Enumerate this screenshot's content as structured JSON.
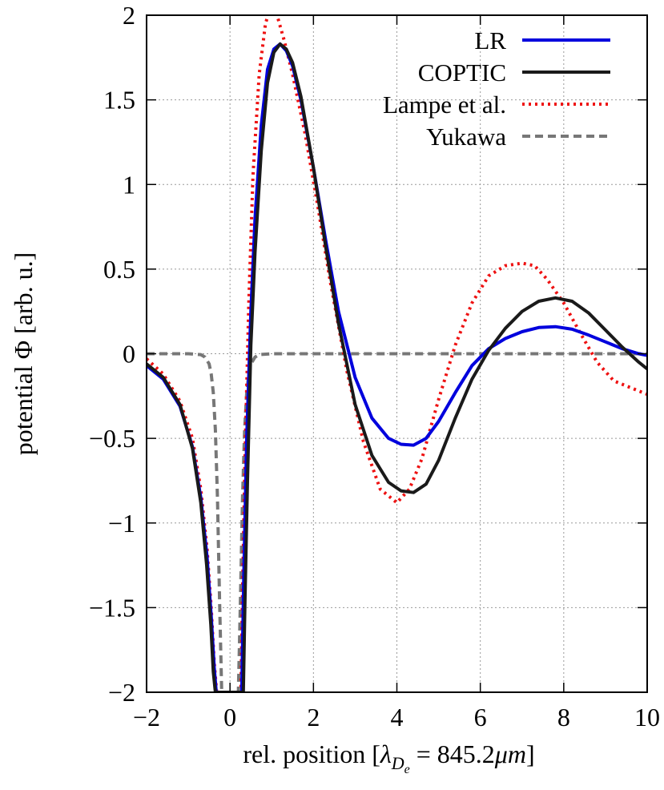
{
  "chart_data": {
    "type": "line",
    "title": "",
    "xlabel": "rel. position [λ_De = 845.2μm]",
    "xlabel_parts": {
      "prefix": "rel. position [",
      "lambda": "λ",
      "sub": "D",
      "subsub": "e",
      "eq": " = 845.2",
      "mu": "μ",
      "m": "m",
      "suffix": "]"
    },
    "ylabel": "potential Φ [arb. u.]",
    "xlim": [
      -2,
      10
    ],
    "ylim": [
      -2,
      2
    ],
    "xticks": [
      -2,
      0,
      2,
      4,
      6,
      8,
      10
    ],
    "yticks": [
      -2,
      -1.5,
      -1,
      -0.5,
      0,
      0.5,
      1,
      1.5,
      2
    ],
    "xtick_labels": [
      "−2",
      "0",
      "2",
      "4",
      "6",
      "8",
      "10"
    ],
    "ytick_labels": [
      "−2",
      "−1.5",
      "−1",
      "−0.5",
      "0",
      "0.5",
      "1",
      "1.5",
      "2"
    ],
    "grid": true,
    "legend_position": "top-right",
    "series": [
      {
        "name": "LR",
        "color": "#0000dd",
        "dash": "solid",
        "x": [
          -2.0,
          -1.6,
          -1.2,
          -0.9,
          -0.7,
          -0.55,
          -0.45,
          -0.38,
          -0.33,
          0.28,
          0.33,
          0.4,
          0.5,
          0.6,
          0.75,
          0.9,
          1.05,
          1.2,
          1.35,
          1.5,
          1.7,
          2.0,
          2.3,
          2.6,
          3.0,
          3.4,
          3.8,
          4.1,
          4.4,
          4.7,
          5.0,
          5.4,
          5.8,
          6.2,
          6.6,
          7.0,
          7.4,
          7.8,
          8.2,
          8.6,
          9.0,
          9.4,
          9.8,
          10.0
        ],
        "y": [
          -0.07,
          -0.15,
          -0.31,
          -0.55,
          -0.85,
          -1.2,
          -1.55,
          -1.85,
          -2.0,
          -2.0,
          -1.3,
          -0.5,
          0.25,
          0.8,
          1.35,
          1.68,
          1.8,
          1.83,
          1.79,
          1.7,
          1.5,
          1.1,
          0.66,
          0.25,
          -0.14,
          -0.38,
          -0.5,
          -0.535,
          -0.54,
          -0.5,
          -0.4,
          -0.23,
          -0.07,
          0.03,
          0.09,
          0.13,
          0.155,
          0.16,
          0.145,
          0.11,
          0.07,
          0.03,
          0.0,
          -0.01
        ]
      },
      {
        "name": "COPTIC",
        "color": "#1a1a1a",
        "dash": "solid",
        "x": [
          -2.0,
          -1.6,
          -1.2,
          -0.9,
          -0.7,
          -0.56,
          -0.46,
          -0.4,
          -0.35,
          0.32,
          0.36,
          0.42,
          0.5,
          0.6,
          0.75,
          0.9,
          1.05,
          1.2,
          1.35,
          1.5,
          1.7,
          2.0,
          2.3,
          2.6,
          3.0,
          3.4,
          3.8,
          4.1,
          4.4,
          4.7,
          5.0,
          5.4,
          5.8,
          6.2,
          6.6,
          7.0,
          7.4,
          7.8,
          8.2,
          8.6,
          9.0,
          9.4,
          9.8,
          10.0
        ],
        "y": [
          -0.06,
          -0.14,
          -0.3,
          -0.56,
          -0.88,
          -1.25,
          -1.6,
          -1.88,
          -2.0,
          -2.0,
          -1.45,
          -0.75,
          0.05,
          0.6,
          1.2,
          1.6,
          1.78,
          1.83,
          1.8,
          1.72,
          1.52,
          1.1,
          0.62,
          0.18,
          -0.3,
          -0.6,
          -0.76,
          -0.81,
          -0.82,
          -0.77,
          -0.63,
          -0.38,
          -0.15,
          0.02,
          0.15,
          0.25,
          0.31,
          0.33,
          0.31,
          0.24,
          0.14,
          0.04,
          -0.05,
          -0.09
        ]
      },
      {
        "name": "Lampe et al.",
        "color": "#ee1111",
        "dash": "dot",
        "x": [
          -2.0,
          -1.6,
          -1.2,
          -0.9,
          -0.7,
          -0.55,
          -0.45,
          -0.38,
          -0.32,
          0.26,
          0.3,
          0.36,
          0.45,
          0.55,
          0.7,
          0.85,
          0.95,
          1.05,
          1.15,
          1.3,
          1.5,
          1.8,
          2.1,
          2.4,
          2.8,
          3.2,
          3.6,
          4.0,
          4.3,
          4.6,
          5.0,
          5.4,
          5.8,
          6.2,
          6.6,
          7.0,
          7.3,
          7.6,
          8.0,
          8.4,
          8.8,
          9.2,
          9.6,
          10.0
        ],
        "y": [
          -0.03,
          -0.12,
          -0.28,
          -0.5,
          -0.8,
          -1.15,
          -1.5,
          -1.82,
          -2.0,
          -2.0,
          -1.4,
          -0.6,
          0.3,
          1.05,
          1.65,
          1.95,
          2.03,
          2.03,
          1.98,
          1.85,
          1.65,
          1.3,
          0.88,
          0.43,
          -0.1,
          -0.52,
          -0.8,
          -0.88,
          -0.8,
          -0.62,
          -0.27,
          0.05,
          0.3,
          0.46,
          0.52,
          0.535,
          0.52,
          0.44,
          0.3,
          0.12,
          -0.05,
          -0.16,
          -0.2,
          -0.24
        ]
      },
      {
        "name": "Yukawa",
        "color": "#777777",
        "dash": "dash",
        "x": [
          -2.0,
          -1.0,
          -0.7,
          -0.6,
          -0.5,
          -0.45,
          -0.4,
          -0.35,
          -0.3,
          -0.25,
          -0.2,
          0.2,
          0.25,
          0.3,
          0.35,
          0.4,
          0.45,
          0.5,
          0.6,
          0.7,
          1.0,
          2.0,
          10.0
        ],
        "y": [
          0.0,
          0.0,
          -0.005,
          -0.02,
          -0.06,
          -0.12,
          -0.23,
          -0.45,
          -0.85,
          -1.45,
          -2.0,
          -2.0,
          -1.45,
          -0.85,
          -0.45,
          -0.23,
          -0.12,
          -0.06,
          -0.02,
          -0.005,
          0.0,
          0.0,
          0.0
        ]
      }
    ]
  }
}
